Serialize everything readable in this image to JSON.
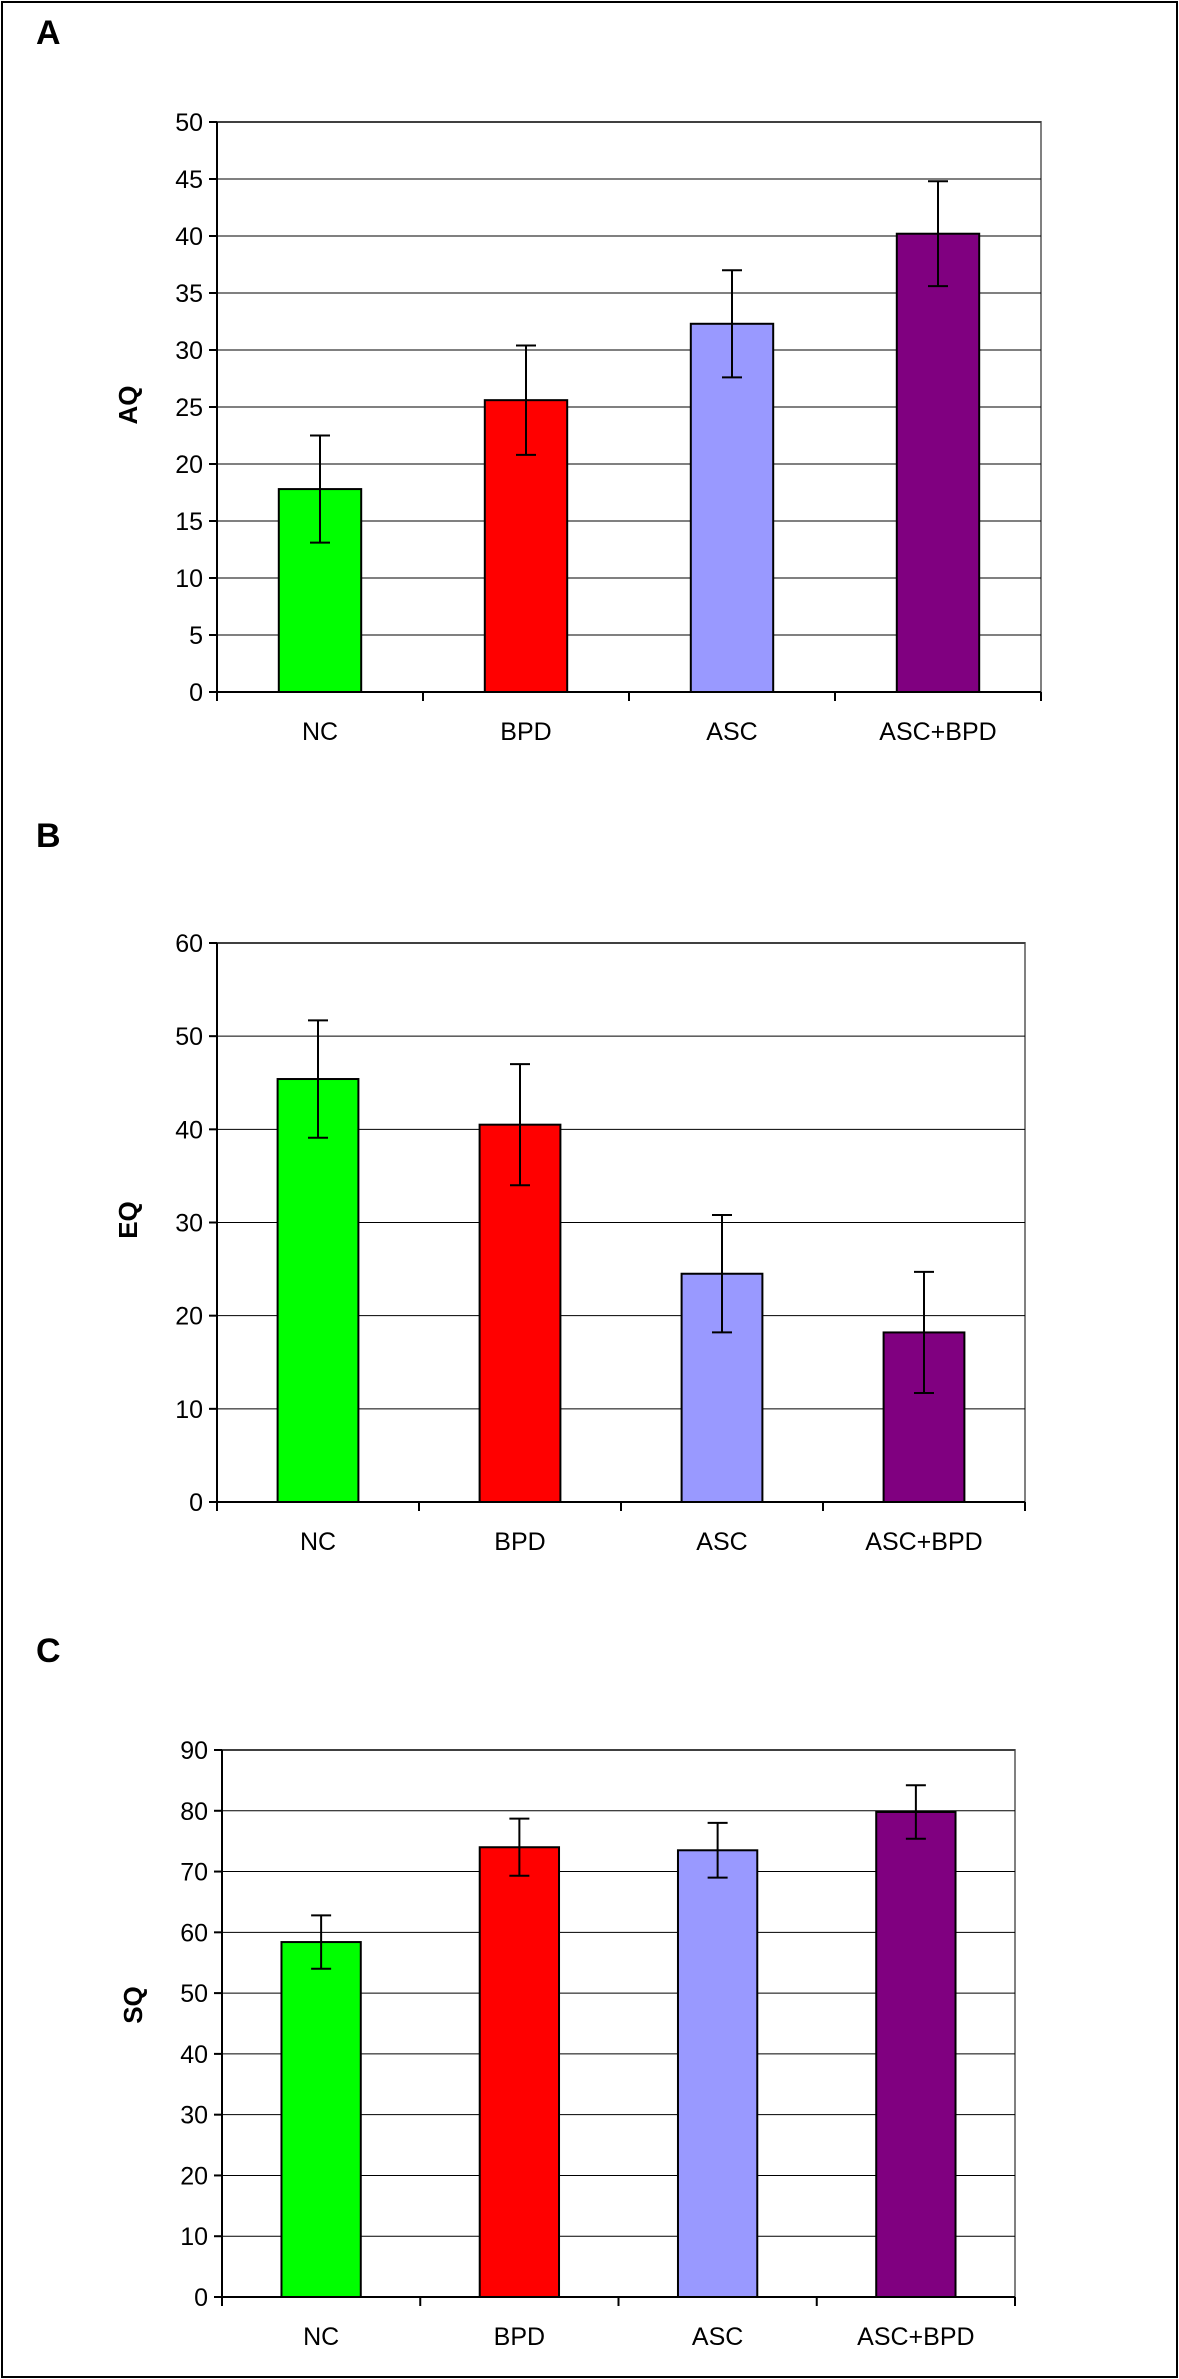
{
  "chart_data": [
    {
      "panel": "A",
      "type": "bar",
      "categories": [
        "NC",
        "BPD",
        "ASC",
        "ASC+BPD"
      ],
      "values": [
        17.8,
        25.6,
        32.3,
        40.2
      ],
      "error": [
        4.7,
        4.8,
        4.7,
        4.6
      ],
      "ylabel": "AQ",
      "ylim": [
        0,
        50
      ],
      "ytick_step": 5,
      "grid": true,
      "colors": [
        "#00ff00",
        "#ff0000",
        "#9999ff",
        "#800080"
      ]
    },
    {
      "panel": "B",
      "type": "bar",
      "categories": [
        "NC",
        "BPD",
        "ASC",
        "ASC+BPD"
      ],
      "values": [
        45.4,
        40.5,
        24.5,
        18.2
      ],
      "error": [
        6.3,
        6.5,
        6.3,
        6.5
      ],
      "ylabel": "EQ",
      "ylim": [
        0,
        60
      ],
      "ytick_step": 10,
      "grid": true,
      "colors": [
        "#00ff00",
        "#ff0000",
        "#9999ff",
        "#800080"
      ]
    },
    {
      "panel": "C",
      "type": "bar",
      "categories": [
        "NC",
        "BPD",
        "ASC",
        "ASC+BPD"
      ],
      "values": [
        58.4,
        74.0,
        73.5,
        79.8
      ],
      "error": [
        4.4,
        4.7,
        4.5,
        4.4
      ],
      "ylabel": "SQ",
      "ylim": [
        0,
        90
      ],
      "ytick_step": 10,
      "grid": true,
      "colors": [
        "#00ff00",
        "#ff0000",
        "#9999ff",
        "#800080"
      ]
    }
  ]
}
